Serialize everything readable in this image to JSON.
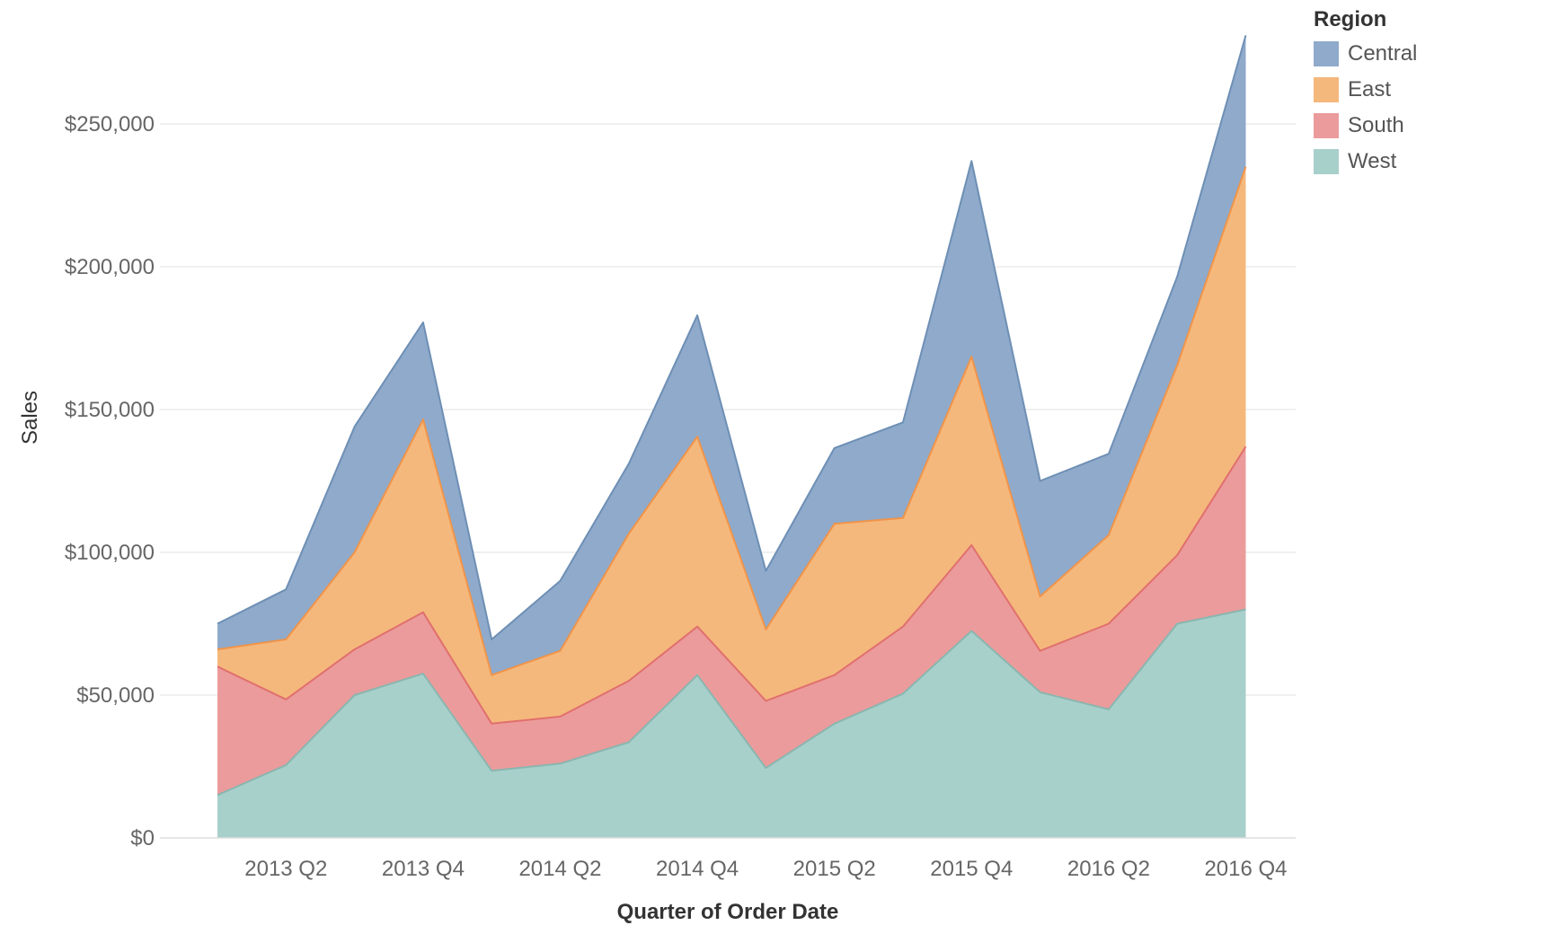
{
  "chart_data": {
    "type": "area",
    "stacked": true,
    "xlabel": "Quarter of Order Date",
    "ylabel": "Sales",
    "x_tick_labels": [
      "2013 Q2",
      "2013 Q4",
      "2014 Q2",
      "2014 Q4",
      "2015 Q2",
      "2015 Q4",
      "2016 Q2",
      "2016 Q4"
    ],
    "y_tick_labels": [
      "$0",
      "$50,000",
      "$100,000",
      "$150,000",
      "$200,000",
      "$250,000"
    ],
    "ylim": [
      0,
      285000
    ],
    "grid": "horizontal",
    "legend_position": "top-right",
    "legend_title": "Region",
    "categories": [
      "2013 Q1",
      "2013 Q2",
      "2013 Q3",
      "2013 Q4",
      "2014 Q1",
      "2014 Q2",
      "2014 Q3",
      "2014 Q4",
      "2015 Q1",
      "2015 Q2",
      "2015 Q3",
      "2015 Q4",
      "2016 Q1",
      "2016 Q2",
      "2016 Q3",
      "2016 Q4"
    ],
    "series": [
      {
        "name": "West",
        "color": "#A8D0CB",
        "line_color": "#8AB6B0",
        "values": [
          15000,
          25500,
          50000,
          57500,
          23500,
          26000,
          33500,
          57000,
          24500,
          40000,
          50500,
          72500,
          51000,
          45000,
          75000,
          80000
        ]
      },
      {
        "name": "South",
        "color": "#EB9B9B",
        "line_color": "#E0706E",
        "values": [
          45000,
          23000,
          16000,
          21500,
          16500,
          16500,
          21500,
          17000,
          23500,
          17000,
          23500,
          30000,
          14500,
          30000,
          24000,
          57000
        ]
      },
      {
        "name": "East",
        "color": "#F5B87C",
        "line_color": "#F0944A",
        "values": [
          6000,
          21000,
          34000,
          67500,
          17000,
          23000,
          51500,
          66500,
          25000,
          53000,
          38000,
          66000,
          19000,
          31000,
          66500,
          98000
        ]
      },
      {
        "name": "Central",
        "color": "#8FAACA",
        "line_color": "#6E8FB5",
        "values": [
          9000,
          17500,
          44000,
          34000,
          12500,
          24500,
          24500,
          42500,
          20500,
          26500,
          33500,
          68500,
          40500,
          28500,
          31000,
          46000
        ]
      }
    ]
  },
  "legend": {
    "title": "Region",
    "items": [
      {
        "label": "Central",
        "color": "#8FAACA"
      },
      {
        "label": "East",
        "color": "#F5B87C"
      },
      {
        "label": "South",
        "color": "#EB9B9B"
      },
      {
        "label": "West",
        "color": "#A8D0CB"
      }
    ]
  }
}
